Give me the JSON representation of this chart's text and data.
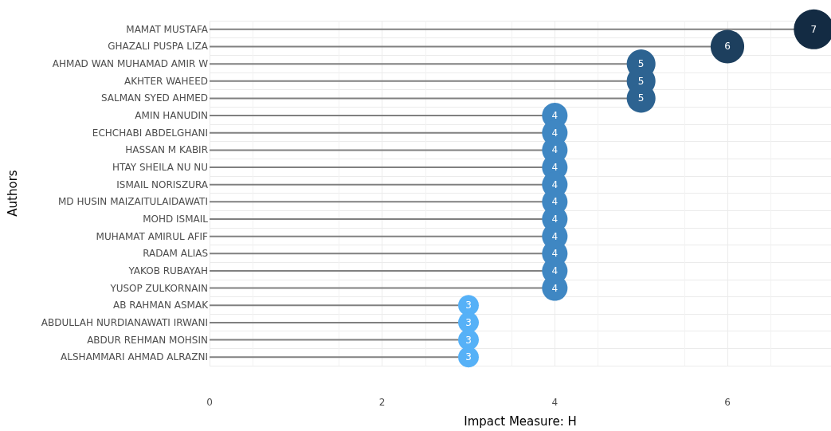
{
  "chart_data": {
    "type": "lollipop",
    "orientation": "horizontal",
    "xlabel": "Impact Measure: H",
    "ylabel": "Authors",
    "categories": [
      "MAMAT MUSTAFA",
      "GHAZALI PUSPA LIZA",
      "AHMAD WAN MUHAMAD AMIR W",
      "AKHTER WAHEED",
      "SALMAN SYED AHMED",
      "AMIN HANUDIN",
      "ECHCHABI ABDELGHANI",
      "HASSAN M KABIR",
      "HTAY SHEILA NU NU",
      "ISMAIL NORISZURA",
      "MD HUSIN MAIZAITULAIDAWATI",
      "MOHD ISMAIL",
      "MUHAMAT AMIRUL AFIF",
      "RADAM ALIAS",
      "YAKOB RUBAYAH",
      "YUSOP ZULKORNAIN",
      "AB RAHMAN ASMAK",
      "ABDULLAH NURDIANAWATI IRWANI",
      "ABDUR REHMAN MOHSIN",
      "ALSHAMMARI AHMAD ALRAZNI"
    ],
    "values": [
      7,
      6,
      5,
      5,
      5,
      4,
      4,
      4,
      4,
      4,
      4,
      4,
      4,
      4,
      4,
      4,
      3,
      3,
      3,
      3
    ],
    "colors": [
      "#132b43",
      "#1d3f5e",
      "#2d6391",
      "#2d6391",
      "#2d6391",
      "#3f87c3",
      "#3f87c3",
      "#3f87c3",
      "#3f87c3",
      "#3f87c3",
      "#3f87c3",
      "#3f87c3",
      "#3f87c3",
      "#3f87c3",
      "#3f87c3",
      "#3f87c3",
      "#56b1f7",
      "#56b1f7",
      "#56b1f7",
      "#56b1f7"
    ],
    "sizes": [
      1,
      0.71,
      0.52,
      0.52,
      0.52,
      0.41,
      0.41,
      0.41,
      0.41,
      0.41,
      0.41,
      0.41,
      0.41,
      0.41,
      0.41,
      0.41,
      0.27,
      0.27,
      0.27,
      0.27
    ],
    "xlim": [
      0,
      7.2
    ],
    "xticks": [
      0,
      2,
      4,
      6
    ],
    "grid": true,
    "data_labels": true,
    "marker": "circle"
  }
}
